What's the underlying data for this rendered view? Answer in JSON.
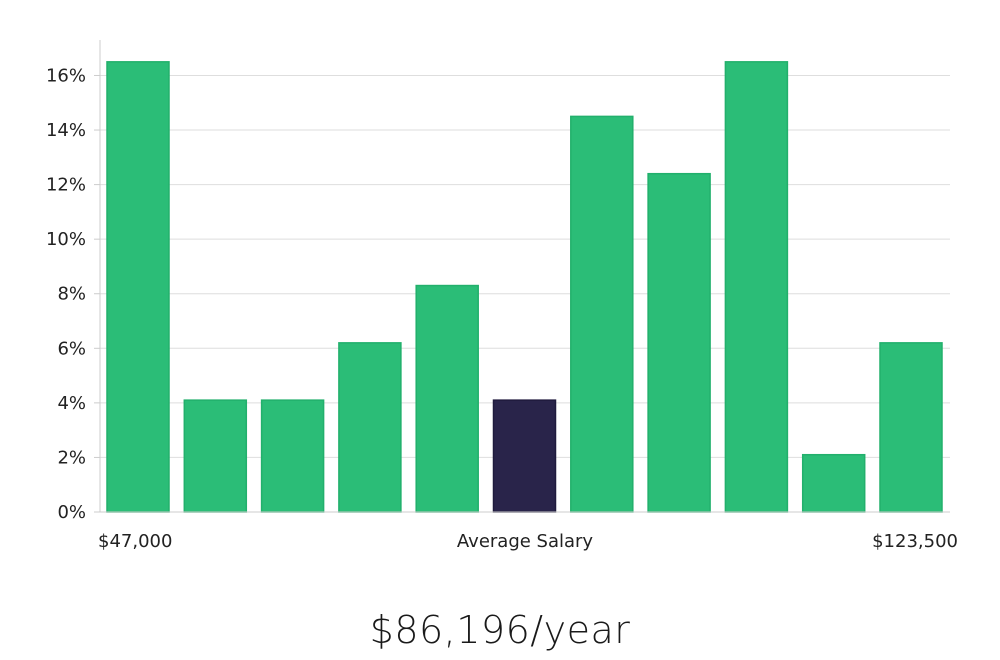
{
  "chart_data": {
    "type": "bar",
    "values": [
      16.5,
      4.1,
      4.1,
      6.2,
      8.3,
      4.1,
      14.5,
      12.4,
      16.5,
      2.1,
      6.2
    ],
    "highlight_index": 5,
    "ylim": [
      0,
      17.3
    ],
    "y_ticks": [
      0,
      2,
      4,
      6,
      8,
      10,
      12,
      14,
      16
    ],
    "y_tick_labels": [
      "0%",
      "2%",
      "4%",
      "6%",
      "8%",
      "10%",
      "12%",
      "14%",
      "16%"
    ],
    "grid": true,
    "x_labels": {
      "left": "$47,000",
      "center": "Average Salary",
      "right": "$123,500"
    },
    "colors": {
      "bar": "#2bbd77",
      "bar_edge": "#22b06c",
      "highlight": "#29244a",
      "grid": "#dedede",
      "axis": "#cccccc"
    }
  },
  "headline": "$86,196/year"
}
